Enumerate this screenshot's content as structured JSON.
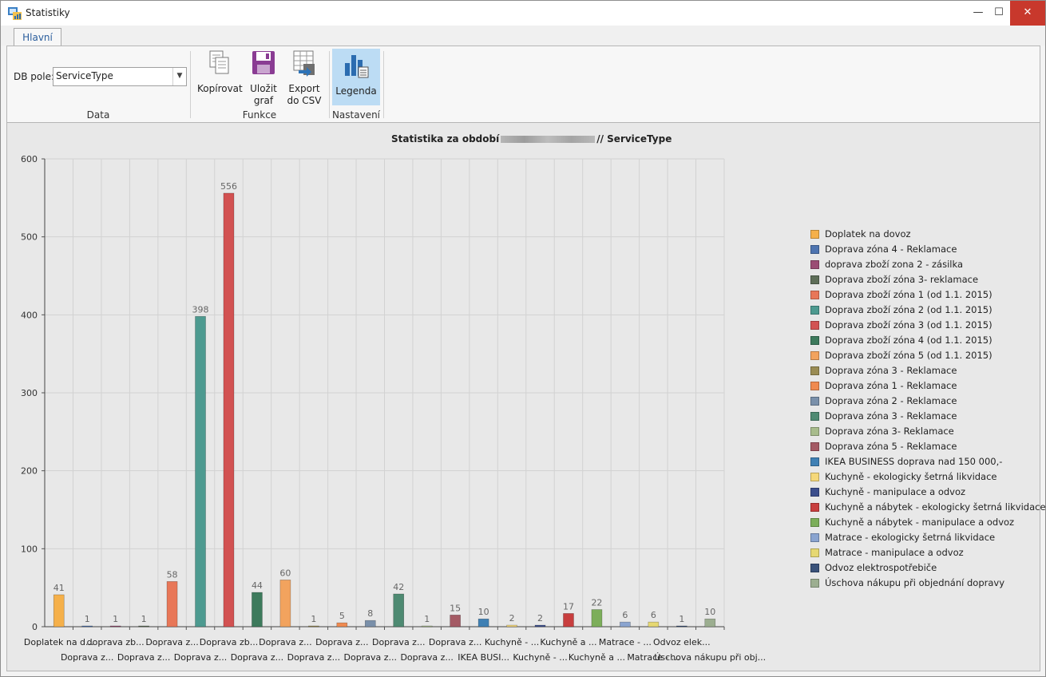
{
  "window": {
    "title": "Statistiky",
    "controls": {
      "minimize": "—",
      "maximize": "☐",
      "close": "✕"
    }
  },
  "tabs": [
    {
      "label": "Hlavní",
      "active": true
    }
  ],
  "ribbon": {
    "data_group": {
      "label": "Data",
      "field_label": "DB pole:",
      "field_value": "ServiceType"
    },
    "funkce_group": {
      "label": "Funkce",
      "copy_line1": "Kopírovat",
      "save_line1": "Uložit",
      "save_line2": "graf",
      "export_line1": "Export",
      "export_line2": "do CSV"
    },
    "nastaveni_group": {
      "label": "Nastavení",
      "legend_button": "Legenda",
      "legend_active": true
    }
  },
  "chart": {
    "title_prefix": "Statistika za období",
    "title_suffix": "// ServiceType"
  },
  "chart_data": {
    "type": "bar",
    "title": "Statistika za období // ServiceType",
    "ylim": [
      0,
      600
    ],
    "yticks": [
      0,
      100,
      200,
      300,
      400,
      500,
      600
    ],
    "grid": true,
    "legend_position": "right",
    "series": [
      {
        "name": "Doplatek na dovoz",
        "value": 41,
        "color": "#f5b04a",
        "axis_label": "Doplatek na d...",
        "row": 0
      },
      {
        "name": "Doprava  zóna 4 - Reklamace",
        "value": 1,
        "color": "#4e74b0",
        "axis_label": "Doprava  z...",
        "row": 1
      },
      {
        "name": "doprava zboží  zona 2 - zásilka",
        "value": 1,
        "color": "#9b4c74",
        "axis_label": "doprava zb...",
        "row": 0
      },
      {
        "name": "Doprava zboží  zóna 3- reklamace",
        "value": 1,
        "color": "#5e6e58",
        "axis_label": "Doprava z...",
        "row": 1
      },
      {
        "name": "Doprava zboží zóna 1 (od 1.1. 2015)",
        "value": 58,
        "color": "#e87758",
        "axis_label": "Doprava z...",
        "row": 0
      },
      {
        "name": "Doprava zboží zóna 2 (od 1.1. 2015)",
        "value": 398,
        "color": "#4d9a90",
        "axis_label": "Doprava z...",
        "row": 1
      },
      {
        "name": "Doprava zboží zóna 3 (od 1.1. 2015)",
        "value": 556,
        "color": "#d25252",
        "axis_label": "Doprava zb...",
        "row": 0
      },
      {
        "name": "Doprava zboží zóna 4 (od 1.1. 2015)",
        "value": 44,
        "color": "#3d7a5c",
        "axis_label": "Doprava z...",
        "row": 1
      },
      {
        "name": "Doprava zboží zóna 5 (od 1.1. 2015)",
        "value": 60,
        "color": "#f2a35e",
        "axis_label": "Doprava z...",
        "row": 0
      },
      {
        "name": "Doprava zóna  3 - Reklamace",
        "value": 1,
        "color": "#9a8c54",
        "axis_label": "Doprava z...",
        "row": 1
      },
      {
        "name": "Doprava zóna 1 - Reklamace",
        "value": 5,
        "color": "#f08a50",
        "axis_label": "Doprava z...",
        "row": 0
      },
      {
        "name": "Doprava zóna 2 - Reklamace",
        "value": 8,
        "color": "#7a90aa",
        "axis_label": "Doprava z...",
        "row": 1
      },
      {
        "name": "Doprava zóna 3 - Reklamace",
        "value": 42,
        "color": "#4e8a72",
        "axis_label": "Doprava z...",
        "row": 0
      },
      {
        "name": "Doprava zóna 3- Reklamace",
        "value": 1,
        "color": "#a8bc8c",
        "axis_label": "Doprava z...",
        "row": 1
      },
      {
        "name": "Doprava zóna 5 - Reklamace",
        "value": 15,
        "color": "#a45a64",
        "axis_label": "Doprava z...",
        "row": 0
      },
      {
        "name": "IKEA BUSINESS doprava nad 150 000,-",
        "value": 10,
        "color": "#3f80b4",
        "axis_label": "IKEA BUSI...",
        "row": 1
      },
      {
        "name": "Kuchyně - ekologicky šetrná likvidace",
        "value": 2,
        "color": "#f5d87a",
        "axis_label": "Kuchyně - ...",
        "row": 0
      },
      {
        "name": "Kuchyně - manipulace a odvoz",
        "value": 2,
        "color": "#3c4e8c",
        "axis_label": "Kuchyně - ...",
        "row": 1
      },
      {
        "name": "Kuchyně a nábytek - ekologicky šetrná likvidace",
        "value": 17,
        "color": "#c83e3e",
        "axis_label": "Kuchyně a ...",
        "row": 0
      },
      {
        "name": "Kuchyně a nábytek - manipulace a odvoz",
        "value": 22,
        "color": "#7cae5a",
        "axis_label": "Kuchyně a ...",
        "row": 1
      },
      {
        "name": "Matrace - ekologicky šetrná likvidace",
        "value": 6,
        "color": "#8aa4d0",
        "axis_label": "Matrace - ...",
        "row": 0
      },
      {
        "name": "Matrace - manipulace a odvoz",
        "value": 6,
        "color": "#e6d872",
        "axis_label": "Matrace - ...",
        "row": 1
      },
      {
        "name": "Odvoz elektrospotřebiče",
        "value": 1,
        "color": "#3a527a",
        "axis_label": "Odvoz elek...",
        "row": 0
      },
      {
        "name": "Úschova nákupu při objednání dopravy",
        "value": 10,
        "color": "#9cae90",
        "axis_label": "Úschova nákupu při obj...",
        "row": 1
      }
    ]
  }
}
